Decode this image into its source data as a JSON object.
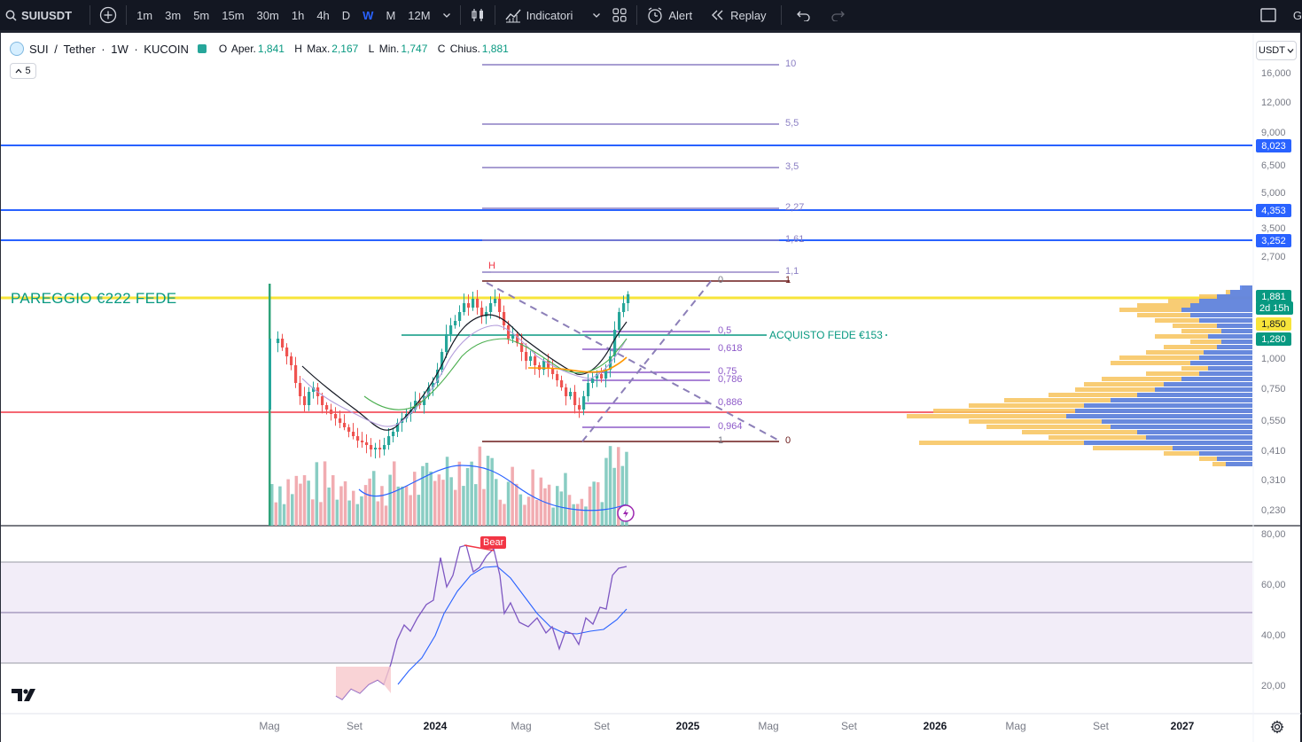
{
  "toolbar": {
    "symbol": "SUIUSDT",
    "timeframes": [
      "1m",
      "3m",
      "5m",
      "15m",
      "30m",
      "1h",
      "4h",
      "D",
      "W",
      "M",
      "12M"
    ],
    "active_timeframe": "W",
    "indicators_label": "Indicatori",
    "alert_label": "Alert",
    "replay_label": "Replay",
    "right_clip": "G"
  },
  "legend": {
    "pair": "SUI",
    "quote": "Tether",
    "interval": "1W",
    "exchange": "KUCOIN",
    "open_label": "O",
    "open_key": "Aper.",
    "open": "1,841",
    "high_label": "H",
    "high_key": "Max.",
    "high": "2,167",
    "low_label": "L",
    "low_key": "Min.",
    "low": "1,747",
    "close_label": "C",
    "close_key": "Chius.",
    "close": "1,881",
    "indicator_count": "5"
  },
  "currency_select": "USDT",
  "price_axis": [
    "16,000",
    "12,000",
    "9,000",
    "6,500",
    "5,000",
    "3,500",
    "2,700",
    "1,000",
    "0,750",
    "0,550",
    "0,410",
    "0,310",
    "0,230"
  ],
  "price_tags": [
    {
      "value": "8,023",
      "color": "#2962ff"
    },
    {
      "value": "4,353",
      "color": "#2962ff"
    },
    {
      "value": "3,252",
      "color": "#2962ff"
    },
    {
      "value": "1,881",
      "color": "#089981"
    },
    {
      "value": "2d 15h",
      "color": "#089981"
    },
    {
      "value": "1,850",
      "color": "#f7e43a"
    },
    {
      "value": "1,280",
      "color": "#089981"
    }
  ],
  "rsi_axis": [
    "80,00",
    "60,00",
    "40,00",
    "20,00"
  ],
  "time_axis": [
    "Mag",
    "Set",
    "2024",
    "Mag",
    "Set",
    "2025",
    "Mag",
    "Set",
    "2026",
    "Mag",
    "Set",
    "2027"
  ],
  "annotations": {
    "pareggio": "PAREGGIO €222 FEDE",
    "acquisto": "ACQUISTO FEDE €153",
    "bear": "Bear",
    "h_marker": "H"
  },
  "fib_extension": [
    "10",
    "5,5",
    "3,5",
    "2,27",
    "1,61",
    "1,1",
    "1",
    "0"
  ],
  "fib_retracement": [
    "0",
    "0,5",
    "0,618",
    "0,75",
    "0,786",
    "0,886",
    "0,964",
    "1"
  ]
}
